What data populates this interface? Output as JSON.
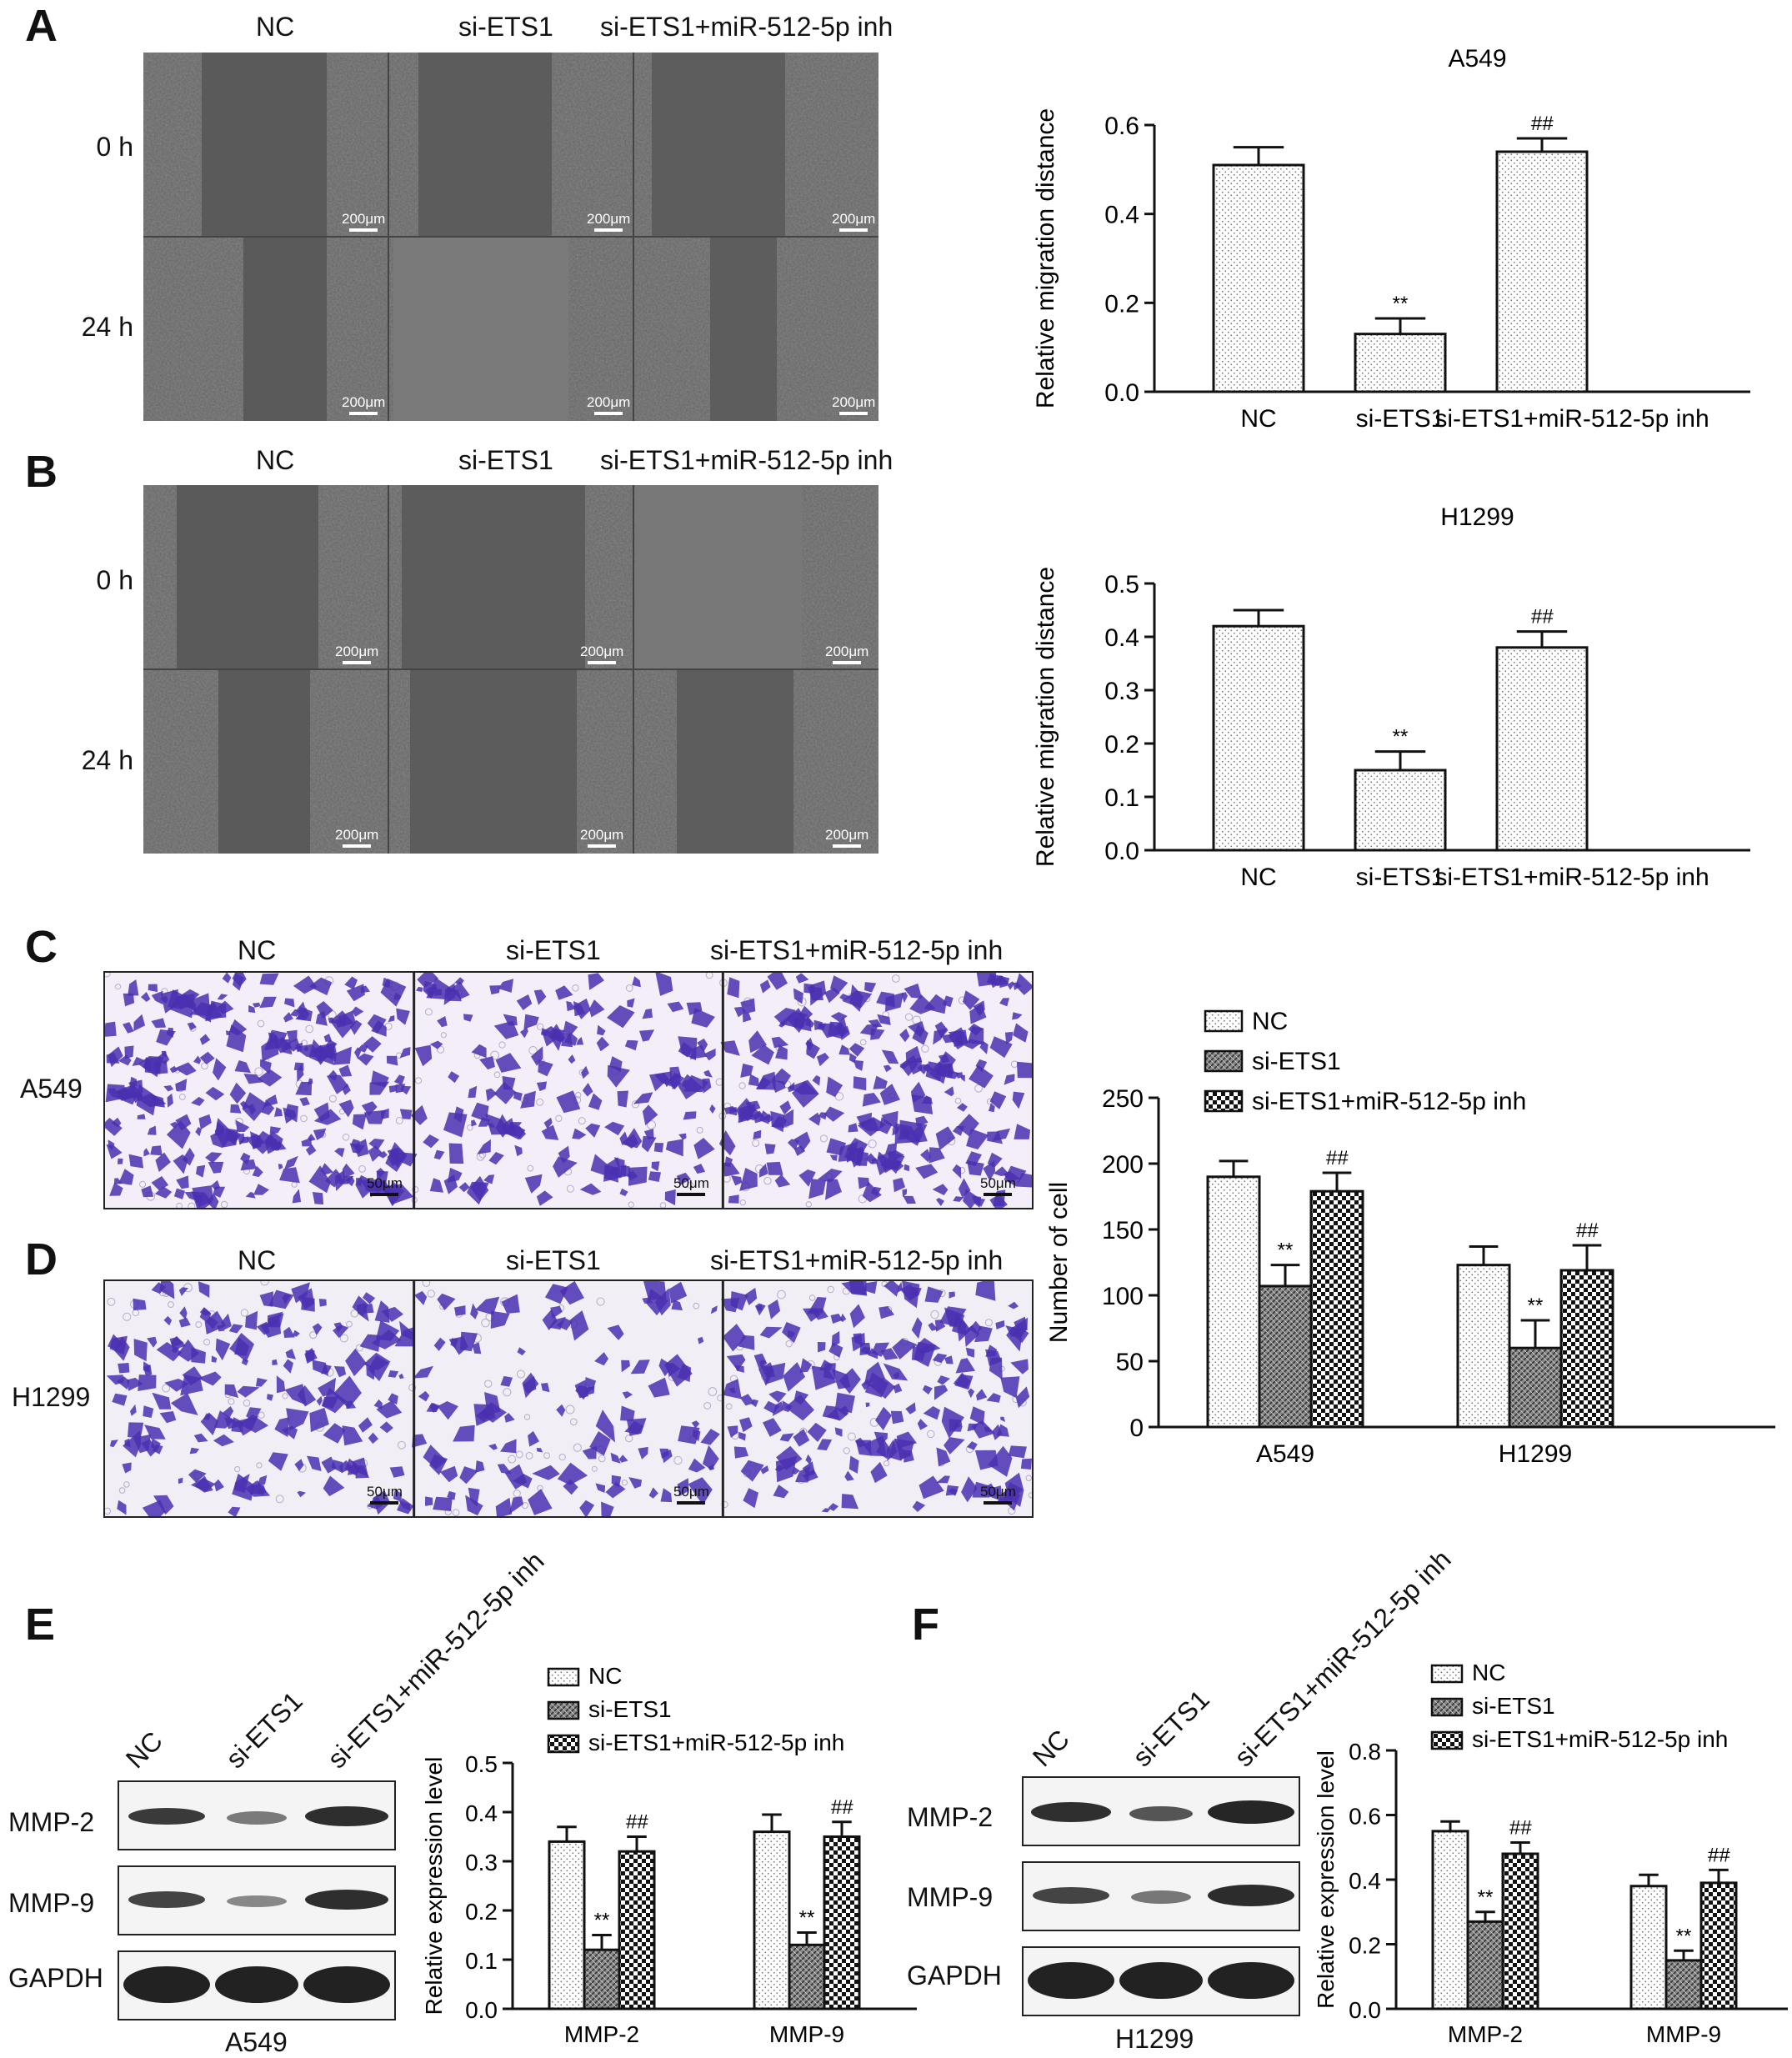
{
  "panels": {
    "A": {
      "letter": "A",
      "col_labels": [
        "NC",
        "si-ETS1",
        "si-ETS1+miR-512-5p inh"
      ],
      "row_labels": [
        "0 h",
        "24 h"
      ],
      "scale_bar": "200μm"
    },
    "B": {
      "letter": "B",
      "col_labels": [
        "NC",
        "si-ETS1",
        "si-ETS1+miR-512-5p inh"
      ],
      "row_labels": [
        "0 h",
        "24 h"
      ],
      "scale_bar": "200μm"
    },
    "C": {
      "letter": "C",
      "col_labels": [
        "NC",
        "si-ETS1",
        "si-ETS1+miR-512-5p inh"
      ],
      "row_label": "A549",
      "scale_bar": "50μm"
    },
    "D": {
      "letter": "D",
      "col_labels": [
        "NC",
        "si-ETS1",
        "si-ETS1+miR-512-5p inh"
      ],
      "row_label": "H1299",
      "scale_bar": "50μm"
    },
    "E": {
      "letter": "E",
      "lanes": [
        "NC",
        "si-ETS1",
        "si-ETS1+miR-512-5p inh"
      ],
      "bands": [
        "MMP-2",
        "MMP-9",
        "GAPDH"
      ],
      "cell_line": "A549"
    },
    "F": {
      "letter": "F",
      "lanes": [
        "NC",
        "si-ETS1",
        "si-ETS1+miR-512-5p inh"
      ],
      "bands": [
        "MMP-2",
        "MMP-9",
        "GAPDH"
      ],
      "cell_line": "H1299"
    }
  },
  "colors": {
    "bar_stroke": "#111111",
    "crystal_violet": "#4a2fb0",
    "phase_bg": "#6a6a6a"
  },
  "chart_data": [
    {
      "id": "A549-migration",
      "type": "bar",
      "title": "A549",
      "categories": [
        "NC",
        "si-ETS1",
        "si-ETS1+miR-512-5p inh"
      ],
      "values": [
        0.51,
        0.13,
        0.54
      ],
      "errors": [
        0.04,
        0.035,
        0.03
      ],
      "annotations": [
        "",
        "**",
        "##"
      ],
      "ylabel": "Relative migration distance",
      "ylim": [
        0,
        0.6
      ],
      "yticks": [
        "0.0",
        "0.2",
        "0.4",
        "0.6"
      ]
    },
    {
      "id": "H1299-migration",
      "type": "bar",
      "title": "H1299",
      "categories": [
        "NC",
        "si-ETS1",
        "si-ETS1+miR-512-5p inh"
      ],
      "values": [
        0.42,
        0.15,
        0.38
      ],
      "errors": [
        0.03,
        0.035,
        0.03
      ],
      "annotations": [
        "",
        "**",
        "##"
      ],
      "ylabel": "Relative migration distance",
      "ylim": [
        0,
        0.5
      ],
      "yticks": [
        "0.0",
        "0.1",
        "0.2",
        "0.3",
        "0.4",
        "0.5"
      ]
    },
    {
      "id": "invasion",
      "type": "bar",
      "categories": [
        "A549",
        "H1299"
      ],
      "series": [
        {
          "name": "NC",
          "values": [
            190,
            123
          ],
          "errors": [
            12,
            14
          ],
          "annotations": [
            "",
            ""
          ]
        },
        {
          "name": "si-ETS1",
          "values": [
            107,
            60
          ],
          "errors": [
            16,
            21
          ],
          "annotations": [
            "**",
            "**"
          ]
        },
        {
          "name": "si-ETS1+miR-512-5p inh",
          "values": [
            179,
            119
          ],
          "errors": [
            14,
            19
          ],
          "annotations": [
            "##",
            "##"
          ]
        }
      ],
      "ylabel": "Number of cell",
      "ylim": [
        0,
        250
      ],
      "yticks": [
        "0",
        "50",
        "100",
        "150",
        "200",
        "250"
      ],
      "legend": "top"
    },
    {
      "id": "A549-western",
      "type": "bar",
      "categories": [
        "MMP-2",
        "MMP-9"
      ],
      "series": [
        {
          "name": "NC",
          "values": [
            0.34,
            0.36
          ],
          "errors": [
            0.03,
            0.035
          ],
          "annotations": [
            "",
            ""
          ]
        },
        {
          "name": "si-ETS1",
          "values": [
            0.12,
            0.13
          ],
          "errors": [
            0.03,
            0.025
          ],
          "annotations": [
            "**",
            "**"
          ]
        },
        {
          "name": "si-ETS1+miR-512-5p inh",
          "values": [
            0.32,
            0.35
          ],
          "errors": [
            0.03,
            0.03
          ],
          "annotations": [
            "##",
            "##"
          ]
        }
      ],
      "ylabel": "Relative expression level",
      "ylim": [
        0,
        0.5
      ],
      "yticks": [
        "0.0",
        "0.1",
        "0.2",
        "0.3",
        "0.4",
        "0.5"
      ],
      "legend": "top"
    },
    {
      "id": "H1299-western",
      "type": "bar",
      "categories": [
        "MMP-2",
        "MMP-9"
      ],
      "series": [
        {
          "name": "NC",
          "values": [
            0.55,
            0.38
          ],
          "errors": [
            0.03,
            0.035
          ],
          "annotations": [
            "",
            ""
          ]
        },
        {
          "name": "si-ETS1",
          "values": [
            0.27,
            0.15
          ],
          "errors": [
            0.03,
            0.03
          ],
          "annotations": [
            "**",
            "**"
          ]
        },
        {
          "name": "si-ETS1+miR-512-5p inh",
          "values": [
            0.48,
            0.39
          ],
          "errors": [
            0.035,
            0.04
          ],
          "annotations": [
            "##",
            "##"
          ]
        }
      ],
      "ylabel": "Relative expression level",
      "ylim": [
        0,
        0.8
      ],
      "yticks": [
        "0.0",
        "0.2",
        "0.4",
        "0.6",
        "0.8"
      ],
      "legend": "top"
    }
  ]
}
